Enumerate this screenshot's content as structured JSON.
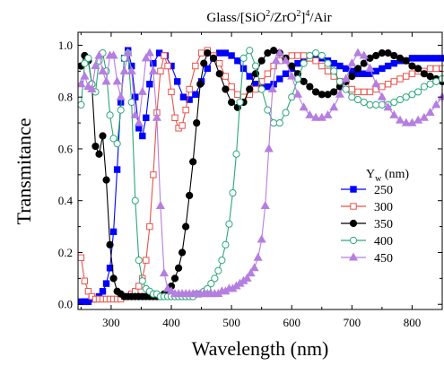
{
  "chart_data": {
    "type": "line",
    "title": {
      "prefix": "Glass/[SiO",
      "sup1": "2",
      "mid": "/ZrO",
      "sup2": "2",
      "close": "]",
      "sup3": "4",
      "suffix": "/Air"
    },
    "xlabel": "Wavelength (nm)",
    "ylabel": "Transmitance",
    "xlim": [
      245,
      850
    ],
    "ylim": [
      -0.02,
      1.05
    ],
    "xticks": [
      "300",
      "400",
      "500",
      "600",
      "700",
      "800"
    ],
    "yticks": [
      "0.0",
      "0.2",
      "0.4",
      "0.6",
      "0.8",
      "1.0"
    ],
    "legend": {
      "title_main": "Y",
      "title_sub": "w",
      "title_unit": " (nm)",
      "position": "right-center"
    },
    "grid": false,
    "series": [
      {
        "name": "250",
        "color": "#0000ff",
        "marker": "square-filled",
        "x": [
          250,
          256,
          262,
          268,
          274,
          280,
          286,
          292,
          298,
          304,
          310,
          316,
          322,
          328,
          334,
          340,
          346,
          352,
          358,
          364,
          370,
          380,
          390,
          400,
          410,
          420,
          430,
          440,
          450,
          460,
          470,
          480,
          490,
          500,
          510,
          520,
          530,
          540,
          550,
          560,
          570,
          580,
          590,
          600,
          610,
          620,
          630,
          640,
          650,
          660,
          670,
          680,
          690,
          700,
          710,
          720,
          730,
          740,
          750,
          760,
          770,
          780,
          790,
          800,
          810,
          820,
          830,
          840,
          850
        ],
        "y": [
          0.01,
          0.01,
          0.01,
          0.02,
          0.02,
          0.03,
          0.05,
          0.08,
          0.14,
          0.28,
          0.52,
          0.78,
          0.95,
          0.98,
          0.92,
          0.8,
          0.68,
          0.65,
          0.72,
          0.85,
          0.93,
          0.97,
          0.96,
          0.92,
          0.86,
          0.8,
          0.79,
          0.81,
          0.86,
          0.91,
          0.95,
          0.97,
          0.97,
          0.96,
          0.94,
          0.91,
          0.88,
          0.85,
          0.84,
          0.84,
          0.85,
          0.87,
          0.89,
          0.91,
          0.93,
          0.94,
          0.95,
          0.95,
          0.95,
          0.94,
          0.93,
          0.92,
          0.91,
          0.9,
          0.89,
          0.89,
          0.89,
          0.9,
          0.91,
          0.92,
          0.93,
          0.94,
          0.94,
          0.95,
          0.95,
          0.95,
          0.95,
          0.95,
          0.95
        ]
      },
      {
        "name": "300",
        "color": "#e8524a",
        "marker": "square-open",
        "x": [
          250,
          256,
          262,
          268,
          274,
          280,
          286,
          292,
          298,
          304,
          310,
          316,
          322,
          328,
          334,
          340,
          346,
          352,
          358,
          364,
          370,
          376,
          382,
          388,
          394,
          400,
          406,
          412,
          418,
          424,
          430,
          440,
          450,
          460,
          470,
          480,
          490,
          500,
          510,
          520,
          530,
          540,
          550,
          560,
          570,
          580,
          590,
          600,
          610,
          620,
          630,
          640,
          650,
          660,
          670,
          680,
          690,
          700,
          710,
          720,
          730,
          740,
          750,
          760,
          770,
          780,
          790,
          800,
          810,
          820,
          830,
          840,
          850
        ],
        "y": [
          0.18,
          0.09,
          0.05,
          0.03,
          0.02,
          0.02,
          0.02,
          0.02,
          0.02,
          0.02,
          0.02,
          0.02,
          0.03,
          0.03,
          0.04,
          0.05,
          0.07,
          0.1,
          0.17,
          0.3,
          0.5,
          0.74,
          0.9,
          0.96,
          0.92,
          0.82,
          0.72,
          0.68,
          0.69,
          0.75,
          0.83,
          0.92,
          0.97,
          0.98,
          0.96,
          0.93,
          0.88,
          0.84,
          0.81,
          0.8,
          0.81,
          0.83,
          0.86,
          0.89,
          0.92,
          0.94,
          0.95,
          0.96,
          0.96,
          0.96,
          0.95,
          0.94,
          0.92,
          0.9,
          0.88,
          0.86,
          0.84,
          0.83,
          0.82,
          0.82,
          0.82,
          0.83,
          0.84,
          0.85,
          0.86,
          0.87,
          0.88,
          0.89,
          0.9,
          0.9,
          0.91,
          0.91,
          0.91
        ]
      },
      {
        "name": "350",
        "color": "#000000",
        "marker": "circle-filled",
        "x": [
          250,
          256,
          262,
          268,
          274,
          280,
          286,
          292,
          298,
          304,
          310,
          316,
          322,
          328,
          334,
          340,
          346,
          352,
          358,
          364,
          370,
          376,
          382,
          388,
          394,
          400,
          406,
          412,
          418,
          424,
          430,
          436,
          442,
          448,
          454,
          460,
          470,
          480,
          490,
          500,
          510,
          520,
          530,
          540,
          550,
          560,
          570,
          580,
          590,
          600,
          610,
          620,
          630,
          640,
          650,
          660,
          670,
          680,
          690,
          700,
          710,
          720,
          730,
          740,
          750,
          760,
          770,
          780,
          790,
          800,
          810,
          820,
          830,
          840,
          850
        ],
        "y": [
          0.92,
          0.96,
          0.94,
          0.85,
          0.61,
          0.58,
          0.65,
          0.48,
          0.23,
          0.1,
          0.05,
          0.04,
          0.03,
          0.03,
          0.03,
          0.03,
          0.03,
          0.03,
          0.03,
          0.03,
          0.03,
          0.03,
          0.03,
          0.04,
          0.05,
          0.07,
          0.1,
          0.14,
          0.2,
          0.3,
          0.42,
          0.55,
          0.7,
          0.85,
          0.93,
          0.97,
          0.95,
          0.89,
          0.83,
          0.78,
          0.76,
          0.78,
          0.83,
          0.89,
          0.94,
          0.97,
          0.98,
          0.97,
          0.95,
          0.92,
          0.89,
          0.86,
          0.84,
          0.82,
          0.81,
          0.81,
          0.82,
          0.84,
          0.86,
          0.88,
          0.91,
          0.93,
          0.95,
          0.96,
          0.97,
          0.97,
          0.96,
          0.95,
          0.94,
          0.92,
          0.91,
          0.89,
          0.88,
          0.87,
          0.86
        ]
      },
      {
        "name": "400",
        "color": "#2ca77a",
        "marker": "circle-open",
        "x": [
          250,
          256,
          262,
          268,
          274,
          280,
          286,
          292,
          298,
          304,
          310,
          316,
          322,
          328,
          334,
          340,
          346,
          352,
          358,
          364,
          370,
          376,
          382,
          388,
          394,
          400,
          406,
          412,
          418,
          424,
          430,
          436,
          442,
          448,
          454,
          460,
          466,
          472,
          478,
          484,
          490,
          496,
          502,
          508,
          514,
          520,
          530,
          540,
          550,
          560,
          570,
          580,
          590,
          600,
          610,
          620,
          630,
          640,
          650,
          660,
          670,
          680,
          690,
          700,
          710,
          720,
          730,
          740,
          750,
          760,
          770,
          780,
          790,
          800,
          810,
          820,
          830,
          840,
          850
        ],
        "y": [
          0.77,
          0.93,
          0.95,
          0.85,
          0.82,
          0.94,
          0.97,
          0.9,
          0.73,
          0.64,
          0.62,
          0.75,
          0.95,
          0.97,
          0.78,
          0.4,
          0.17,
          0.09,
          0.06,
          0.05,
          0.04,
          0.04,
          0.03,
          0.03,
          0.03,
          0.03,
          0.03,
          0.03,
          0.03,
          0.03,
          0.03,
          0.03,
          0.04,
          0.04,
          0.05,
          0.06,
          0.08,
          0.1,
          0.13,
          0.17,
          0.23,
          0.31,
          0.43,
          0.58,
          0.78,
          0.95,
          0.98,
          0.92,
          0.83,
          0.75,
          0.7,
          0.7,
          0.74,
          0.8,
          0.87,
          0.93,
          0.96,
          0.97,
          0.96,
          0.93,
          0.9,
          0.86,
          0.83,
          0.8,
          0.79,
          0.78,
          0.77,
          0.77,
          0.77,
          0.77,
          0.78,
          0.79,
          0.8,
          0.81,
          0.82,
          0.84,
          0.85,
          0.86,
          0.87
        ]
      },
      {
        "name": "450",
        "color": "#b57ee0",
        "marker": "triangle-filled",
        "x": [
          250,
          256,
          262,
          268,
          274,
          280,
          286,
          292,
          298,
          304,
          310,
          316,
          322,
          328,
          334,
          340,
          346,
          352,
          358,
          364,
          370,
          376,
          382,
          388,
          394,
          400,
          406,
          412,
          418,
          424,
          430,
          436,
          442,
          448,
          454,
          460,
          466,
          472,
          478,
          484,
          490,
          496,
          502,
          508,
          514,
          520,
          526,
          532,
          538,
          544,
          550,
          556,
          562,
          568,
          574,
          580,
          590,
          600,
          610,
          620,
          630,
          640,
          650,
          660,
          670,
          680,
          690,
          700,
          710,
          720,
          730,
          740,
          750,
          760,
          770,
          780,
          790,
          800,
          810,
          820,
          830,
          840,
          850
        ],
        "y": [
          0.85,
          0.88,
          0.84,
          0.83,
          0.92,
          0.96,
          0.9,
          0.86,
          0.96,
          0.96,
          0.86,
          0.8,
          0.9,
          0.97,
          0.9,
          0.73,
          0.7,
          0.82,
          0.95,
          0.97,
          0.9,
          0.72,
          0.38,
          0.12,
          0.06,
          0.05,
          0.04,
          0.04,
          0.04,
          0.04,
          0.04,
          0.04,
          0.04,
          0.04,
          0.04,
          0.04,
          0.04,
          0.04,
          0.04,
          0.05,
          0.05,
          0.06,
          0.06,
          0.07,
          0.08,
          0.09,
          0.1,
          0.12,
          0.14,
          0.18,
          0.25,
          0.38,
          0.6,
          0.83,
          0.94,
          0.97,
          0.94,
          0.88,
          0.81,
          0.76,
          0.73,
          0.72,
          0.72,
          0.73,
          0.76,
          0.81,
          0.87,
          0.93,
          0.97,
          0.96,
          0.91,
          0.85,
          0.8,
          0.76,
          0.73,
          0.71,
          0.7,
          0.7,
          0.71,
          0.72,
          0.74,
          0.77,
          0.8
        ]
      }
    ]
  }
}
